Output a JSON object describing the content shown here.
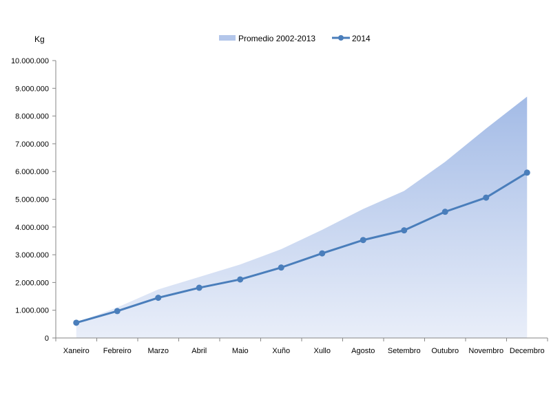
{
  "chart_data": {
    "type": "area",
    "categories": [
      "Xaneiro",
      "Febreiro",
      "Marzo",
      "Abril",
      "Maio",
      "Xuño",
      "Xullo",
      "Agosto",
      "Setembro",
      "Outubro",
      "Novembro",
      "Decembro"
    ],
    "series": [
      {
        "name": "Promedio 2002-2013",
        "type": "area",
        "color": "#a9bfe8",
        "values": [
          550000,
          1100000,
          1750000,
          2200000,
          2650000,
          3200000,
          3900000,
          4650000,
          5300000,
          6350000,
          7550000,
          8700000
        ]
      },
      {
        "name": "2014",
        "type": "line",
        "marker": "circle",
        "color": "#4a7ebb",
        "values": [
          550000,
          970000,
          1450000,
          1810000,
          2110000,
          2540000,
          3050000,
          3530000,
          3880000,
          4550000,
          5060000,
          5960000
        ]
      }
    ],
    "ylabel": "Kg",
    "ylim": [
      0,
      10000000
    ],
    "yticks": [
      "0",
      "1.000.000",
      "2.000.000",
      "3.000.000",
      "4.000.000",
      "5.000.000",
      "6.000.000",
      "7.000.000",
      "8.000.000",
      "9.000.000",
      "10.000.000"
    ],
    "grid": false,
    "legend_position": "top"
  }
}
